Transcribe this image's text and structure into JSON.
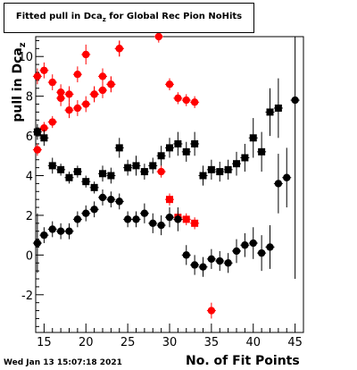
{
  "chart_data": {
    "type": "scatter",
    "title": "Fitted pull in Dcaz for Global Rec Pion NoHits",
    "title_main": "Fitted pull in Dca",
    "title_sub": "z",
    "title_rest": " for Global Rec Pion NoHits",
    "xlabel": "No. of Fit Points",
    "ylabel": "pull in Dcaz",
    "ylabel_main": "pull in Dca",
    "ylabel_sub": "z",
    "xlim": [
      14,
      46
    ],
    "ylim": [
      -3.9,
      11.0
    ],
    "xticks": [
      15,
      20,
      25,
      30,
      35,
      40,
      45
    ],
    "yticks": [
      -2,
      0,
      2,
      4,
      6,
      8,
      10
    ],
    "grid": false,
    "legend": "none",
    "timestamp": "Wed Jan 13 15:07:18 2021",
    "series": [
      {
        "color": "#ff0000",
        "marker": "circle",
        "x": [
          14.2,
          15,
          16,
          17,
          18,
          19,
          20,
          21,
          22,
          23,
          24
        ],
        "y": [
          5.3,
          6.4,
          6.7,
          7.9,
          7.3,
          7.4,
          7.6,
          8.1,
          8.3,
          8.6,
          10.4
        ],
        "err": [
          0.3,
          0.3,
          0.3,
          0.4,
          0.4,
          0.4,
          0.4,
          0.4,
          0.4,
          0.4,
          0.4
        ]
      },
      {
        "color": "#ff0000",
        "marker": "circle",
        "x": [
          14.2,
          15,
          16,
          17,
          18,
          19,
          20,
          21,
          22,
          23,
          24,
          28.7,
          29,
          30,
          31,
          32,
          33,
          35
        ],
        "y": [
          9.0,
          9.3,
          8.7,
          8.2,
          8.1,
          9.1,
          10.1,
          8.1,
          9.0,
          8.6,
          10.4,
          11.0,
          4.2,
          8.6,
          7.9,
          7.8,
          7.7,
          -2.8
        ],
        "err": [
          0.4,
          0.4,
          0.4,
          0.4,
          0.4,
          0.4,
          0.5,
          0.4,
          0.4,
          0.4,
          0.4,
          0.3,
          0.3,
          0.3,
          0.3,
          0.3,
          0.3,
          0.4
        ]
      },
      {
        "color": "#ff0000",
        "marker": "square",
        "x": [
          30,
          31,
          32,
          33
        ],
        "y": [
          2.8,
          1.9,
          1.8,
          1.6
        ],
        "err": [
          0.3,
          0.3,
          0.3,
          0.3
        ]
      },
      {
        "color": "#000000",
        "marker": "square",
        "x": [
          14.2,
          15,
          16,
          17,
          18,
          19,
          20,
          21,
          22,
          23,
          24,
          25,
          26,
          27,
          28,
          29,
          30,
          31,
          32,
          33,
          34,
          35,
          36,
          37,
          38,
          39,
          40,
          41,
          42,
          43
        ],
        "y": [
          6.2,
          5.9,
          4.5,
          4.3,
          3.9,
          4.2,
          3.7,
          3.4,
          4.1,
          4.0,
          5.4,
          4.4,
          4.5,
          4.2,
          4.5,
          5.0,
          5.4,
          5.6,
          5.2,
          5.6,
          4.0,
          4.3,
          4.2,
          4.3,
          4.6,
          4.9,
          5.9,
          5.2,
          7.2,
          7.4
        ],
        "err": [
          0.4,
          0.4,
          0.4,
          0.3,
          0.3,
          0.3,
          0.3,
          0.3,
          0.4,
          0.4,
          0.5,
          0.4,
          0.5,
          0.4,
          0.4,
          0.5,
          0.5,
          0.6,
          0.5,
          0.6,
          0.5,
          0.5,
          0.5,
          0.5,
          0.6,
          0.7,
          1.0,
          1.0,
          1.2,
          1.5
        ]
      },
      {
        "color": "#000000",
        "marker": "circle",
        "x": [
          14.2,
          15,
          16,
          17,
          18,
          19,
          20,
          21,
          22,
          23,
          24,
          25,
          26,
          27,
          28,
          29,
          30,
          31,
          32,
          33,
          34,
          35,
          36,
          37,
          38,
          39,
          40,
          41,
          42,
          43,
          44,
          45
        ],
        "y": [
          0.6,
          1.0,
          1.3,
          1.2,
          1.2,
          1.8,
          2.1,
          2.3,
          2.9,
          2.8,
          2.7,
          1.8,
          1.8,
          2.1,
          1.6,
          1.5,
          1.9,
          1.8,
          0.0,
          -0.5,
          -0.6,
          -0.2,
          -0.3,
          -0.4,
          0.2,
          0.5,
          0.6,
          0.1,
          0.4,
          3.6,
          3.9,
          7.8
        ],
        "err": [
          1.5,
          0.4,
          0.4,
          0.4,
          0.4,
          0.4,
          0.4,
          0.4,
          0.4,
          0.4,
          0.4,
          0.4,
          0.4,
          0.5,
          0.5,
          0.5,
          0.5,
          0.6,
          0.5,
          0.5,
          0.5,
          0.5,
          0.5,
          0.5,
          0.6,
          0.6,
          0.8,
          0.9,
          1.1,
          1.5,
          1.5,
          9.0
        ]
      }
    ]
  }
}
